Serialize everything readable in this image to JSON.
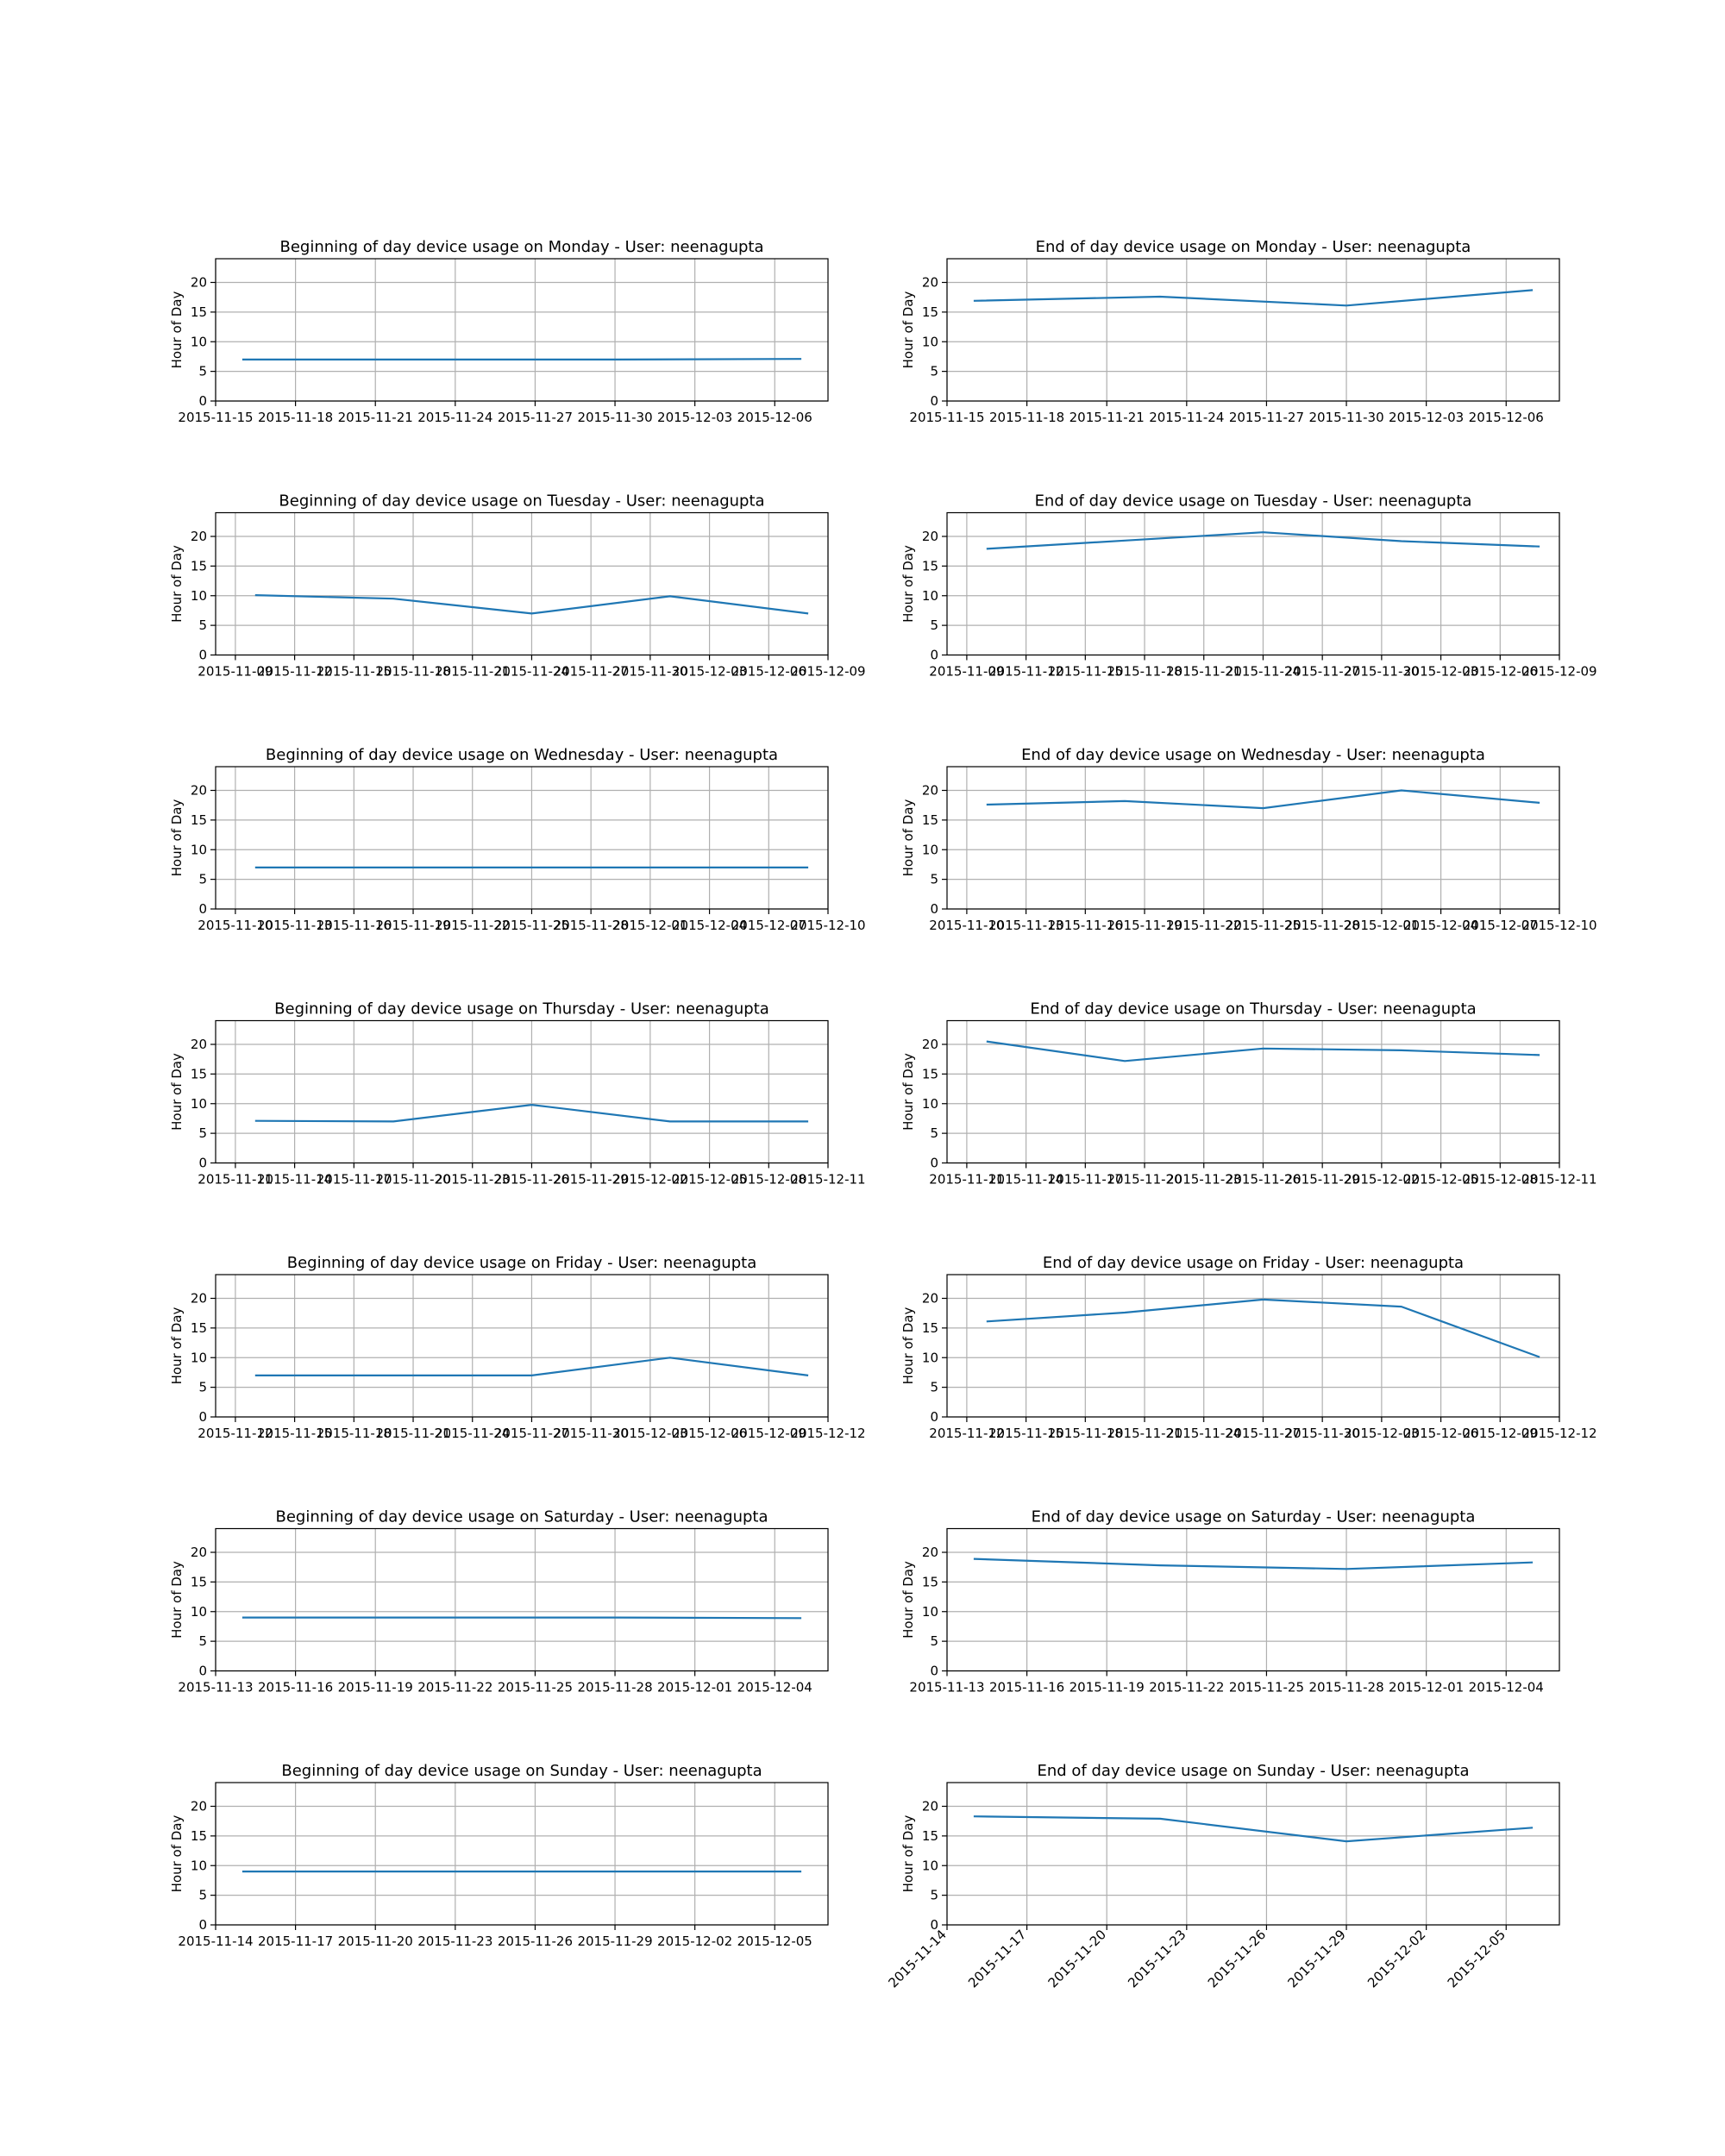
{
  "style": {
    "line_color": "#1f77b4",
    "grid": true,
    "background": "#ffffff"
  },
  "chart_data": [
    {
      "type": "line",
      "title": "Beginning of day device usage on Monday - User: neenagupta",
      "xlabel": "",
      "ylabel": "Hour of Day",
      "ylim": [
        0,
        24
      ],
      "yticks": [
        0,
        5,
        10,
        15,
        20
      ],
      "xlim": [
        "2015-11-15",
        "2015-12-08"
      ],
      "xticks": [
        "2015-11-15",
        "2015-11-18",
        "2015-11-21",
        "2015-11-24",
        "2015-11-27",
        "2015-11-30",
        "2015-12-03",
        "2015-12-06"
      ],
      "series": [
        {
          "x": [
            "2015-11-16",
            "2015-11-23",
            "2015-11-30",
            "2015-12-07"
          ],
          "y": [
            7.0,
            7.0,
            7.0,
            7.1
          ]
        }
      ]
    },
    {
      "type": "line",
      "title": "End of day device usage on Monday - User: neenagupta",
      "xlabel": "",
      "ylabel": "Hour of Day",
      "ylim": [
        0,
        24
      ],
      "yticks": [
        0,
        5,
        10,
        15,
        20
      ],
      "xlim": [
        "2015-11-15",
        "2015-12-08"
      ],
      "xticks": [
        "2015-11-15",
        "2015-11-18",
        "2015-11-21",
        "2015-11-24",
        "2015-11-27",
        "2015-11-30",
        "2015-12-03",
        "2015-12-06"
      ],
      "series": [
        {
          "x": [
            "2015-11-16",
            "2015-11-23",
            "2015-11-30",
            "2015-12-07"
          ],
          "y": [
            16.9,
            17.6,
            16.1,
            18.7
          ]
        }
      ]
    },
    {
      "type": "line",
      "title": "Beginning of day device usage on Tuesday - User: neenagupta",
      "xlabel": "",
      "ylabel": "Hour of Day",
      "ylim": [
        0,
        24
      ],
      "yticks": [
        0,
        5,
        10,
        15,
        20
      ],
      "xlim": [
        "2015-11-08",
        "2015-12-09"
      ],
      "xticks": [
        "2015-11-09",
        "2015-11-12",
        "2015-11-15",
        "2015-11-18",
        "2015-11-21",
        "2015-11-24",
        "2015-11-27",
        "2015-11-30",
        "2015-12-03",
        "2015-12-06",
        "2015-12-09"
      ],
      "series": [
        {
          "x": [
            "2015-11-10",
            "2015-11-17",
            "2015-11-24",
            "2015-12-01",
            "2015-12-08"
          ],
          "y": [
            10.1,
            9.5,
            7.0,
            9.9,
            7.0
          ]
        }
      ]
    },
    {
      "type": "line",
      "title": "End of day device usage on Tuesday - User: neenagupta",
      "xlabel": "",
      "ylabel": "Hour of Day",
      "ylim": [
        0,
        24
      ],
      "yticks": [
        0,
        5,
        10,
        15,
        20
      ],
      "xlim": [
        "2015-11-08",
        "2015-12-09"
      ],
      "xticks": [
        "2015-11-09",
        "2015-11-12",
        "2015-11-15",
        "2015-11-18",
        "2015-11-21",
        "2015-11-24",
        "2015-11-27",
        "2015-11-30",
        "2015-12-03",
        "2015-12-06",
        "2015-12-09"
      ],
      "series": [
        {
          "x": [
            "2015-11-10",
            "2015-11-17",
            "2015-11-24",
            "2015-12-01",
            "2015-12-08"
          ],
          "y": [
            17.9,
            19.3,
            20.7,
            19.2,
            18.3
          ]
        }
      ]
    },
    {
      "type": "line",
      "title": "Beginning of day device usage on Wednesday - User: neenagupta",
      "xlabel": "",
      "ylabel": "Hour of Day",
      "ylim": [
        0,
        24
      ],
      "yticks": [
        0,
        5,
        10,
        15,
        20
      ],
      "xlim": [
        "2015-11-09",
        "2015-12-10"
      ],
      "xticks": [
        "2015-11-10",
        "2015-11-13",
        "2015-11-16",
        "2015-11-19",
        "2015-11-22",
        "2015-11-25",
        "2015-11-28",
        "2015-12-01",
        "2015-12-04",
        "2015-12-07",
        "2015-12-10"
      ],
      "series": [
        {
          "x": [
            "2015-11-11",
            "2015-11-18",
            "2015-11-25",
            "2015-12-02",
            "2015-12-09"
          ],
          "y": [
            7.0,
            7.0,
            7.0,
            7.0,
            7.0
          ]
        }
      ]
    },
    {
      "type": "line",
      "title": "End of day device usage on Wednesday - User: neenagupta",
      "xlabel": "",
      "ylabel": "Hour of Day",
      "ylim": [
        0,
        24
      ],
      "yticks": [
        0,
        5,
        10,
        15,
        20
      ],
      "xlim": [
        "2015-11-09",
        "2015-12-10"
      ],
      "xticks": [
        "2015-11-10",
        "2015-11-13",
        "2015-11-16",
        "2015-11-19",
        "2015-11-22",
        "2015-11-25",
        "2015-11-28",
        "2015-12-01",
        "2015-12-04",
        "2015-12-07",
        "2015-12-10"
      ],
      "series": [
        {
          "x": [
            "2015-11-11",
            "2015-11-18",
            "2015-11-25",
            "2015-12-02",
            "2015-12-09"
          ],
          "y": [
            17.6,
            18.2,
            17.0,
            20.0,
            17.9
          ]
        }
      ]
    },
    {
      "type": "line",
      "title": "Beginning of day device usage on Thursday - User: neenagupta",
      "xlabel": "",
      "ylabel": "Hour of Day",
      "ylim": [
        0,
        24
      ],
      "yticks": [
        0,
        5,
        10,
        15,
        20
      ],
      "xlim": [
        "2015-11-10",
        "2015-12-11"
      ],
      "xticks": [
        "2015-11-11",
        "2015-11-14",
        "2015-11-17",
        "2015-11-20",
        "2015-11-23",
        "2015-11-26",
        "2015-11-29",
        "2015-12-02",
        "2015-12-05",
        "2015-12-08",
        "2015-12-11"
      ],
      "series": [
        {
          "x": [
            "2015-11-12",
            "2015-11-19",
            "2015-11-26",
            "2015-12-03",
            "2015-12-10"
          ],
          "y": [
            7.1,
            7.0,
            9.8,
            7.0,
            7.0
          ]
        }
      ]
    },
    {
      "type": "line",
      "title": "End of day device usage on Thursday - User: neenagupta",
      "xlabel": "",
      "ylabel": "Hour of Day",
      "ylim": [
        0,
        24
      ],
      "yticks": [
        0,
        5,
        10,
        15,
        20
      ],
      "xlim": [
        "2015-11-10",
        "2015-12-11"
      ],
      "xticks": [
        "2015-11-11",
        "2015-11-14",
        "2015-11-17",
        "2015-11-20",
        "2015-11-23",
        "2015-11-26",
        "2015-11-29",
        "2015-12-02",
        "2015-12-05",
        "2015-12-08",
        "2015-12-11"
      ],
      "series": [
        {
          "x": [
            "2015-11-12",
            "2015-11-19",
            "2015-11-26",
            "2015-12-03",
            "2015-12-10"
          ],
          "y": [
            20.5,
            17.2,
            19.3,
            19.0,
            18.2
          ]
        }
      ]
    },
    {
      "type": "line",
      "title": "Beginning of day device usage on Friday - User: neenagupta",
      "xlabel": "",
      "ylabel": "Hour of Day",
      "ylim": [
        0,
        24
      ],
      "yticks": [
        0,
        5,
        10,
        15,
        20
      ],
      "xlim": [
        "2015-11-11",
        "2015-12-12"
      ],
      "xticks": [
        "2015-11-12",
        "2015-11-15",
        "2015-11-18",
        "2015-11-21",
        "2015-11-24",
        "2015-11-27",
        "2015-11-30",
        "2015-12-03",
        "2015-12-06",
        "2015-12-09",
        "2015-12-12"
      ],
      "series": [
        {
          "x": [
            "2015-11-13",
            "2015-11-20",
            "2015-11-27",
            "2015-12-04",
            "2015-12-11"
          ],
          "y": [
            7.0,
            7.0,
            7.0,
            10.0,
            7.0
          ]
        }
      ]
    },
    {
      "type": "line",
      "title": "End of day device usage on Friday - User: neenagupta",
      "xlabel": "",
      "ylabel": "Hour of Day",
      "ylim": [
        0,
        24
      ],
      "yticks": [
        0,
        5,
        10,
        15,
        20
      ],
      "xlim": [
        "2015-11-11",
        "2015-12-12"
      ],
      "xticks": [
        "2015-11-12",
        "2015-11-15",
        "2015-11-18",
        "2015-11-21",
        "2015-11-24",
        "2015-11-27",
        "2015-11-30",
        "2015-12-03",
        "2015-12-06",
        "2015-12-09",
        "2015-12-12"
      ],
      "series": [
        {
          "x": [
            "2015-11-13",
            "2015-11-20",
            "2015-11-27",
            "2015-12-04",
            "2015-12-11"
          ],
          "y": [
            16.1,
            17.6,
            19.8,
            18.6,
            10.1
          ]
        }
      ]
    },
    {
      "type": "line",
      "title": "Beginning of day device usage on Saturday - User: neenagupta",
      "xlabel": "",
      "ylabel": "Hour of Day",
      "ylim": [
        0,
        24
      ],
      "yticks": [
        0,
        5,
        10,
        15,
        20
      ],
      "xlim": [
        "2015-11-13",
        "2015-12-06"
      ],
      "xticks": [
        "2015-11-13",
        "2015-11-16",
        "2015-11-19",
        "2015-11-22",
        "2015-11-25",
        "2015-11-28",
        "2015-12-01",
        "2015-12-04"
      ],
      "series": [
        {
          "x": [
            "2015-11-14",
            "2015-11-21",
            "2015-11-28",
            "2015-12-05"
          ],
          "y": [
            9.0,
            9.0,
            9.0,
            8.9
          ]
        }
      ]
    },
    {
      "type": "line",
      "title": "End of day device usage on Saturday - User: neenagupta",
      "xlabel": "",
      "ylabel": "Hour of Day",
      "ylim": [
        0,
        24
      ],
      "yticks": [
        0,
        5,
        10,
        15,
        20
      ],
      "xlim": [
        "2015-11-13",
        "2015-12-06"
      ],
      "xticks": [
        "2015-11-13",
        "2015-11-16",
        "2015-11-19",
        "2015-11-22",
        "2015-11-25",
        "2015-11-28",
        "2015-12-01",
        "2015-12-04"
      ],
      "series": [
        {
          "x": [
            "2015-11-14",
            "2015-11-21",
            "2015-11-28",
            "2015-12-05"
          ],
          "y": [
            18.9,
            17.8,
            17.2,
            18.3
          ]
        }
      ]
    },
    {
      "type": "line",
      "title": "Beginning of day device usage on Sunday - User: neenagupta",
      "xlabel": "",
      "ylabel": "Hour of Day",
      "ylim": [
        0,
        24
      ],
      "yticks": [
        0,
        5,
        10,
        15,
        20
      ],
      "xlim": [
        "2015-11-14",
        "2015-12-07"
      ],
      "xticks": [
        "2015-11-14",
        "2015-11-17",
        "2015-11-20",
        "2015-11-23",
        "2015-11-26",
        "2015-11-29",
        "2015-12-02",
        "2015-12-05"
      ],
      "series": [
        {
          "x": [
            "2015-11-15",
            "2015-11-22",
            "2015-11-29",
            "2015-12-06"
          ],
          "y": [
            9.0,
            9.0,
            9.0,
            9.0
          ]
        }
      ]
    },
    {
      "type": "line",
      "title": "End of day device usage on Sunday - User: neenagupta",
      "xlabel": "",
      "ylabel": "Hour of Day",
      "ylim": [
        0,
        24
      ],
      "yticks": [
        0,
        5,
        10,
        15,
        20
      ],
      "xlim": [
        "2015-11-14",
        "2015-12-07"
      ],
      "xtick_rotation": 45,
      "xticks": [
        "2015-11-14",
        "2015-11-17",
        "2015-11-20",
        "2015-11-23",
        "2015-11-26",
        "2015-11-29",
        "2015-12-02",
        "2015-12-05"
      ],
      "series": [
        {
          "x": [
            "2015-11-15",
            "2015-11-22",
            "2015-11-29",
            "2015-12-06"
          ],
          "y": [
            18.3,
            17.9,
            14.1,
            16.4
          ]
        }
      ]
    }
  ]
}
